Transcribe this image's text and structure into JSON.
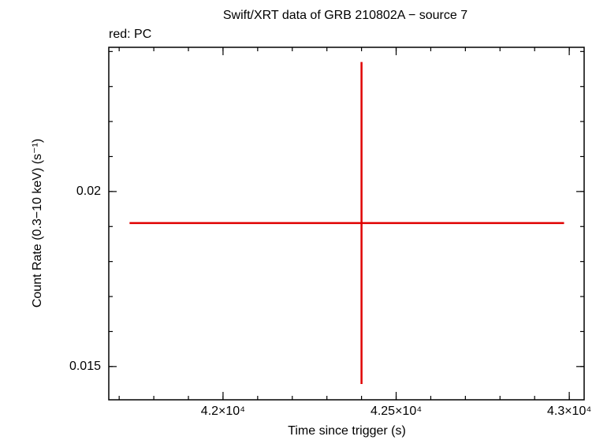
{
  "chart_data": {
    "type": "errorbar",
    "title": "Swift/XRT data of GRB 210802A − source 7",
    "subtitle": "red: PC",
    "x_label": "Time since trigger (s)",
    "y_label": "Count Rate (0.3−10 keV) (s⁻¹)",
    "xlim": [
      41670,
      43043
    ],
    "ylim": [
      0.01405,
      0.02412
    ],
    "xticks": [
      {
        "value": 42000,
        "label": "4.2×10⁴"
      },
      {
        "value": 42500,
        "label": "4.25×10⁴"
      },
      {
        "value": 43000,
        "label": "4.3×10⁴"
      }
    ],
    "yticks": [
      0.015,
      0.02
    ],
    "series": [
      {
        "color": "#e00000",
        "x": [
          42400
        ],
        "xerr_minus": [
          670
        ],
        "xerr_plus": [
          585
        ],
        "values": [
          0.0191
        ],
        "yerr": [
          0.0046
        ]
      }
    ]
  }
}
